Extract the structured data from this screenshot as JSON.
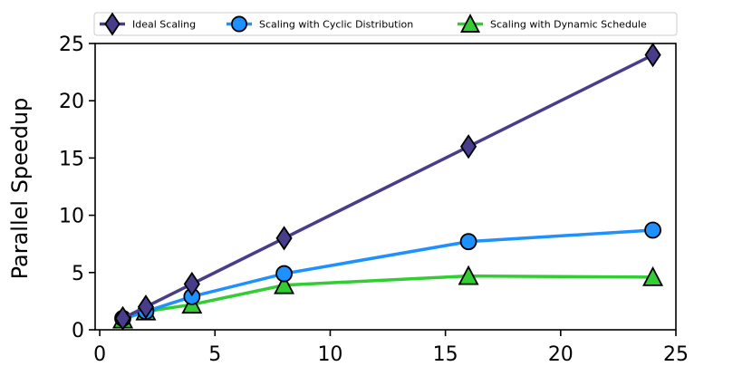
{
  "chart_data": {
    "type": "line",
    "title": "",
    "xlabel": "",
    "ylabel": "Parallel Speedup",
    "xlim": [
      -0.2,
      25
    ],
    "ylim": [
      0,
      25
    ],
    "xticks": [
      0,
      5,
      10,
      15,
      20,
      25
    ],
    "yticks": [
      0,
      5,
      10,
      15,
      20,
      25
    ],
    "grid": false,
    "legend": "top",
    "series": [
      {
        "name": "Ideal Scaling",
        "color": "#483d8b",
        "marker": "diamond",
        "x": [
          1,
          2,
          4,
          8,
          16,
          24
        ],
        "y": [
          1,
          2,
          4,
          8,
          16,
          24
        ]
      },
      {
        "name": "Scaling with Cyclic Distribution",
        "color": "#1e90ff",
        "marker": "circle",
        "x": [
          1,
          2,
          4,
          8,
          16,
          24
        ],
        "y": [
          1,
          1.6,
          2.9,
          4.9,
          7.7,
          8.7
        ]
      },
      {
        "name": "Scaling with Dynamic Schedule",
        "color": "#32cd32",
        "marker": "triangle",
        "x": [
          1,
          2,
          4,
          8,
          16,
          24
        ],
        "y": [
          0.9,
          1.6,
          2.2,
          3.9,
          4.7,
          4.6
        ]
      }
    ]
  }
}
